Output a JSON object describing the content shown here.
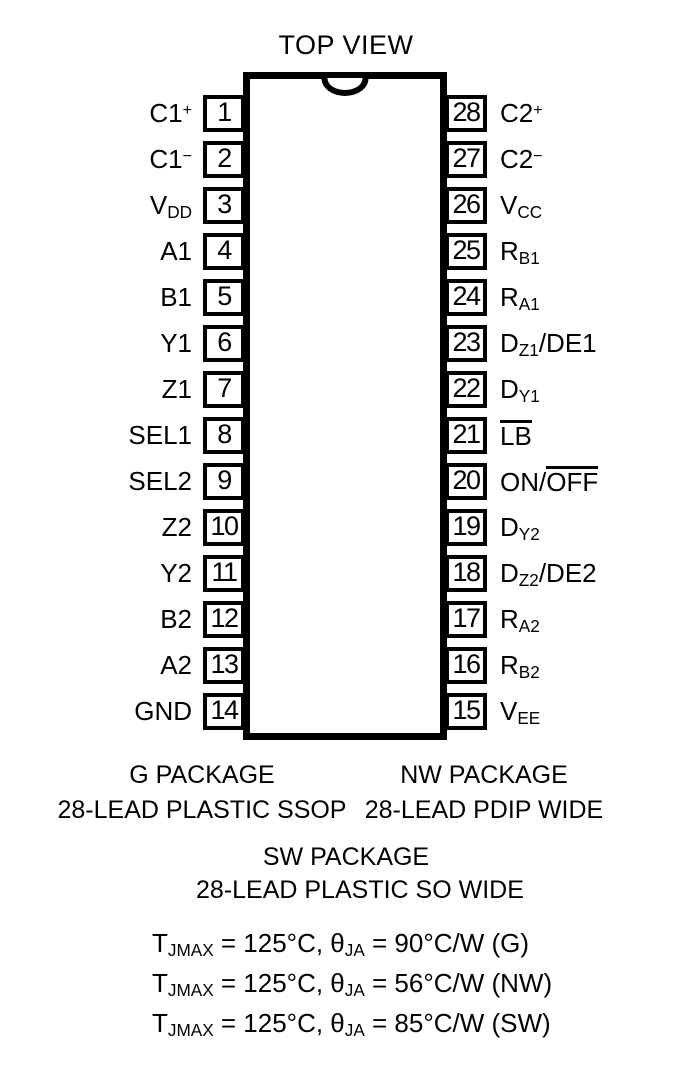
{
  "title": "TOP VIEW",
  "colors": {
    "ink": "#000000",
    "background": "#ffffff"
  },
  "chip": {
    "left_pins": [
      {
        "num": "1",
        "segments": [
          {
            "t": "txt",
            "v": "C1"
          },
          {
            "t": "sup",
            "v": "+"
          }
        ]
      },
      {
        "num": "2",
        "segments": [
          {
            "t": "txt",
            "v": "C1"
          },
          {
            "t": "sup",
            "v": "−"
          }
        ]
      },
      {
        "num": "3",
        "segments": [
          {
            "t": "txt",
            "v": "V"
          },
          {
            "t": "sub",
            "v": "DD"
          }
        ]
      },
      {
        "num": "4",
        "segments": [
          {
            "t": "txt",
            "v": "A1"
          }
        ]
      },
      {
        "num": "5",
        "segments": [
          {
            "t": "txt",
            "v": "B1"
          }
        ]
      },
      {
        "num": "6",
        "segments": [
          {
            "t": "txt",
            "v": "Y1"
          }
        ]
      },
      {
        "num": "7",
        "segments": [
          {
            "t": "txt",
            "v": "Z1"
          }
        ]
      },
      {
        "num": "8",
        "segments": [
          {
            "t": "txt",
            "v": "SEL1"
          }
        ]
      },
      {
        "num": "9",
        "segments": [
          {
            "t": "txt",
            "v": "SEL2"
          }
        ]
      },
      {
        "num": "10",
        "segments": [
          {
            "t": "txt",
            "v": "Z2"
          }
        ]
      },
      {
        "num": "11",
        "segments": [
          {
            "t": "txt",
            "v": "Y2"
          }
        ]
      },
      {
        "num": "12",
        "segments": [
          {
            "t": "txt",
            "v": "B2"
          }
        ]
      },
      {
        "num": "13",
        "segments": [
          {
            "t": "txt",
            "v": "A2"
          }
        ]
      },
      {
        "num": "14",
        "segments": [
          {
            "t": "txt",
            "v": "GND"
          }
        ]
      }
    ],
    "right_pins": [
      {
        "num": "28",
        "segments": [
          {
            "t": "txt",
            "v": "C2"
          },
          {
            "t": "sup",
            "v": "+"
          }
        ]
      },
      {
        "num": "27",
        "segments": [
          {
            "t": "txt",
            "v": "C2"
          },
          {
            "t": "sup",
            "v": "−"
          }
        ]
      },
      {
        "num": "26",
        "segments": [
          {
            "t": "txt",
            "v": "V"
          },
          {
            "t": "sub",
            "v": "CC"
          }
        ]
      },
      {
        "num": "25",
        "segments": [
          {
            "t": "txt",
            "v": "R"
          },
          {
            "t": "sub",
            "v": "B1"
          }
        ]
      },
      {
        "num": "24",
        "segments": [
          {
            "t": "txt",
            "v": "R"
          },
          {
            "t": "sub",
            "v": "A1"
          }
        ]
      },
      {
        "num": "23",
        "segments": [
          {
            "t": "txt",
            "v": "D"
          },
          {
            "t": "sub",
            "v": "Z1"
          },
          {
            "t": "txt",
            "v": "/DE1"
          }
        ]
      },
      {
        "num": "22",
        "segments": [
          {
            "t": "txt",
            "v": "D"
          },
          {
            "t": "sub",
            "v": "Y1"
          }
        ]
      },
      {
        "num": "21",
        "segments": [
          {
            "t": "over",
            "v": "LB"
          }
        ]
      },
      {
        "num": "20",
        "segments": [
          {
            "t": "txt",
            "v": "ON/"
          },
          {
            "t": "over",
            "v": "OFF"
          }
        ]
      },
      {
        "num": "19",
        "segments": [
          {
            "t": "txt",
            "v": "D"
          },
          {
            "t": "sub",
            "v": "Y2"
          }
        ]
      },
      {
        "num": "18",
        "segments": [
          {
            "t": "txt",
            "v": "D"
          },
          {
            "t": "sub",
            "v": "Z2"
          },
          {
            "t": "txt",
            "v": "/DE2"
          }
        ]
      },
      {
        "num": "17",
        "segments": [
          {
            "t": "txt",
            "v": "R"
          },
          {
            "t": "sub",
            "v": "A2"
          }
        ]
      },
      {
        "num": "16",
        "segments": [
          {
            "t": "txt",
            "v": "R"
          },
          {
            "t": "sub",
            "v": "B2"
          }
        ]
      },
      {
        "num": "15",
        "segments": [
          {
            "t": "txt",
            "v": "V"
          },
          {
            "t": "sub",
            "v": "EE"
          }
        ]
      }
    ]
  },
  "captions": {
    "g": {
      "line1": "G PACKAGE",
      "line2": "28-LEAD PLASTIC SSOP"
    },
    "nw": {
      "line1": "NW PACKAGE",
      "line2": "28-LEAD PDIP WIDE"
    },
    "sw": {
      "line1": "SW PACKAGE",
      "line2": "28-LEAD PLASTIC SO WIDE"
    }
  },
  "thermal_notes": [
    {
      "segments": [
        {
          "t": "txt",
          "v": "T"
        },
        {
          "t": "sub",
          "v": "JMAX"
        },
        {
          "t": "txt",
          "v": " = 125°C, θ"
        },
        {
          "t": "sub",
          "v": "JA"
        },
        {
          "t": "txt",
          "v": " = 90°C/W (G)"
        }
      ]
    },
    {
      "segments": [
        {
          "t": "txt",
          "v": "T"
        },
        {
          "t": "sub",
          "v": "JMAX"
        },
        {
          "t": "txt",
          "v": " = 125°C, θ"
        },
        {
          "t": "sub",
          "v": "JA"
        },
        {
          "t": "txt",
          "v": " = 56°C/W (NW)"
        }
      ]
    },
    {
      "segments": [
        {
          "t": "txt",
          "v": "T"
        },
        {
          "t": "sub",
          "v": "JMAX"
        },
        {
          "t": "txt",
          "v": " = 125°C, θ"
        },
        {
          "t": "sub",
          "v": "JA"
        },
        {
          "t": "txt",
          "v": " = 85°C/W (SW)"
        }
      ]
    }
  ]
}
